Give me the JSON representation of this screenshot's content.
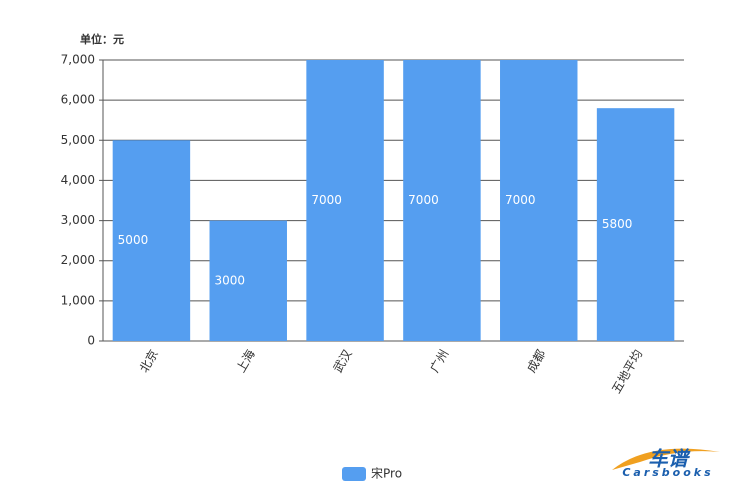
{
  "chart_data": {
    "type": "bar",
    "ylabel": "单位：元",
    "categories": [
      "北京",
      "上海",
      "武汉",
      "广州",
      "成都",
      "五地平均"
    ],
    "series": [
      {
        "name": "宋Pro",
        "color": "#559ef0",
        "values": [
          5000,
          3000,
          7000,
          7000,
          7000,
          5800
        ]
      }
    ],
    "ylim": [
      0,
      7000
    ],
    "yticks": [
      0,
      {
        "value": 1000,
        "label": "1,000"
      },
      {
        "value": 2000,
        "label": "2,000"
      },
      {
        "value": 3000,
        "label": "3,000"
      },
      {
        "value": 4000,
        "label": "4,000"
      },
      {
        "value": 5000,
        "label": "5,000"
      },
      {
        "value": 6000,
        "label": "6,000"
      },
      {
        "value": 7000,
        "label": "7,000"
      }
    ],
    "grid": true,
    "legend": "bottom"
  },
  "logo": {
    "cn": "车谱",
    "en": "Carsbooks"
  }
}
